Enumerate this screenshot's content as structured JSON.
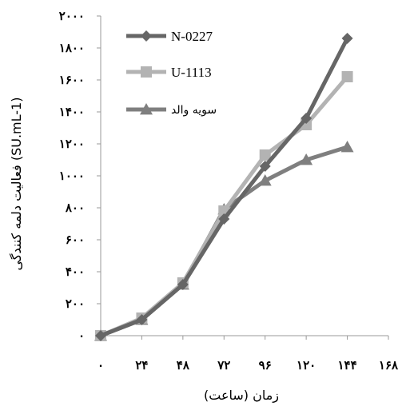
{
  "chart_data": {
    "type": "line",
    "title": "",
    "xlabel": "زمان (ساعت)",
    "ylabel": "فعالیت دلمه کنندگی (SU.mL-1)",
    "x_ticks": [
      0,
      24,
      48,
      72,
      96,
      120,
      144,
      168
    ],
    "x_tick_labels": [
      "۰",
      "۲۴",
      "۴۸",
      "۷۲",
      "۹۶",
      "۱۲۰",
      "۱۴۴",
      "۱۶۸"
    ],
    "y_ticks": [
      0,
      200,
      400,
      600,
      800,
      1000,
      1200,
      1400,
      1600,
      1800,
      2000
    ],
    "y_tick_labels": [
      "۰",
      "۲۰۰",
      "۴۰۰",
      "۶۰۰",
      "۸۰۰",
      "۱۰۰۰",
      "۱۲۰۰",
      "۱۴۰۰",
      "۱۶۰۰",
      "۱۸۰۰",
      "۲۰۰۰"
    ],
    "xlim": [
      0,
      168
    ],
    "ylim": [
      0,
      2000
    ],
    "grid": false,
    "legend_position": "top-left",
    "x": [
      0,
      24,
      48,
      72,
      96,
      120,
      144
    ],
    "series": [
      {
        "name": "N-0227",
        "marker": "diamond",
        "color": "#666666",
        "values": [
          0,
          100,
          320,
          730,
          1060,
          1360,
          1860
        ]
      },
      {
        "name": "U-1113",
        "marker": "square",
        "color": "#b3b3b3",
        "values": [
          0,
          110,
          330,
          780,
          1130,
          1320,
          1620
        ]
      },
      {
        "name": "سویه والد",
        "marker": "triangle",
        "color": "#7f7f7f",
        "values": [
          0,
          100,
          320,
          790,
          970,
          1100,
          1180
        ]
      }
    ]
  }
}
